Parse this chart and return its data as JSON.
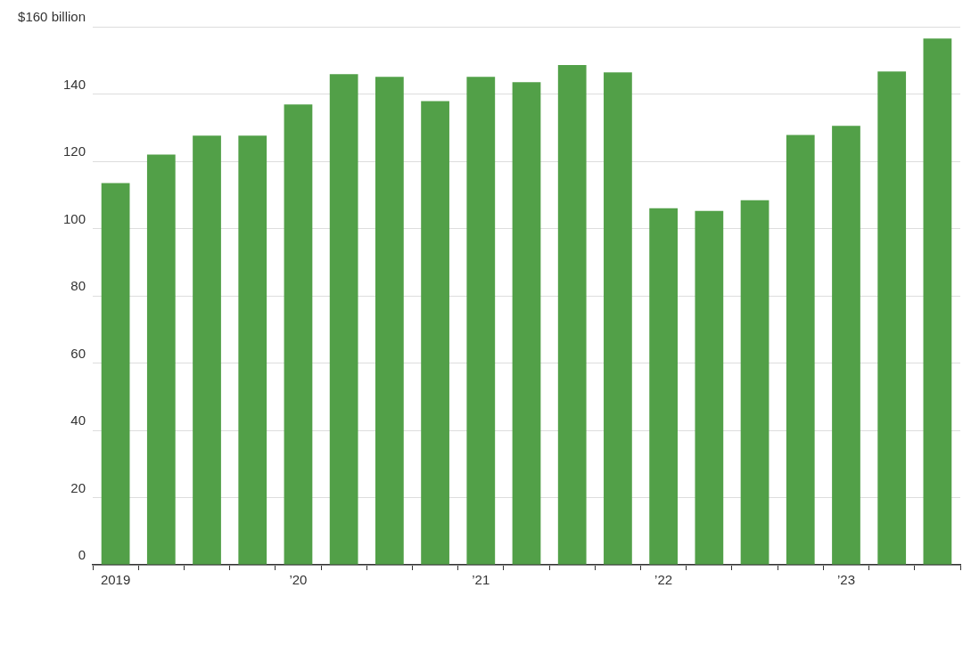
{
  "chart_data": {
    "type": "bar",
    "categories": [
      "2019",
      null,
      null,
      null,
      "’20",
      null,
      null,
      null,
      "’21",
      null,
      null,
      null,
      "’22",
      null,
      null,
      null,
      "’23",
      null,
      null
    ],
    "values": [
      113.5,
      122,
      127.6,
      127.6,
      136.9,
      145.9,
      145.1,
      137.9,
      145.1,
      143.5,
      148.6,
      146.4,
      106,
      105.2,
      108.4,
      127.8,
      130.5,
      146.7,
      156.5
    ],
    "color": "#52a048",
    "ylim": [
      0,
      160
    ],
    "yticks": [
      0,
      20,
      40,
      60,
      80,
      100,
      120,
      140,
      {
        "value": 160,
        "label": "$160 billion"
      }
    ],
    "grid": "y"
  }
}
